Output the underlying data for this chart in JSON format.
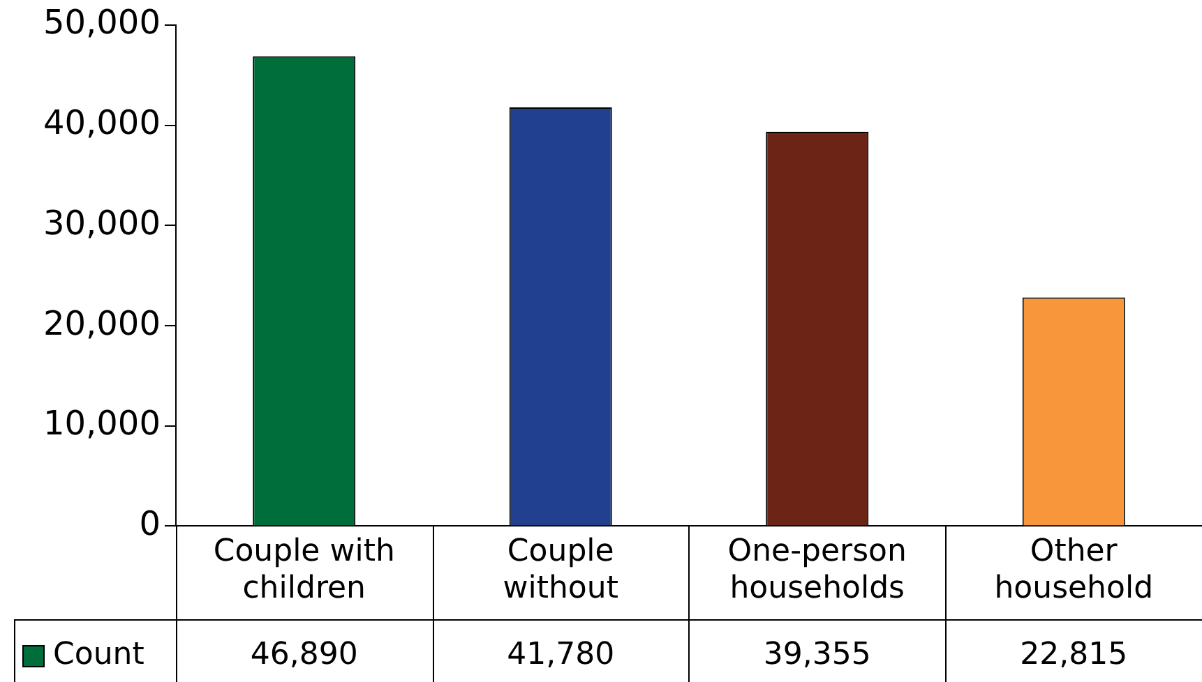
{
  "chart_data": {
    "type": "bar",
    "categories": [
      "Couple with children",
      "Couple without",
      "One-person households",
      "Other household"
    ],
    "series": [
      {
        "name": "Count",
        "color": "#006e3a",
        "colors": [
          "#006e3a",
          "#21408f",
          "#6b2415",
          "#f7963b"
        ],
        "values": [
          46890,
          41780,
          39355,
          22815
        ],
        "value_labels": [
          "46,890",
          "41,780",
          "39,355",
          "22,815"
        ]
      }
    ],
    "ylim": [
      0,
      50000
    ],
    "yticks": [
      {
        "value": 0,
        "label": "0"
      },
      {
        "value": 10000,
        "label": "10,000"
      },
      {
        "value": 20000,
        "label": "20,000"
      },
      {
        "value": 30000,
        "label": "30,000"
      },
      {
        "value": 40000,
        "label": "40,000"
      },
      {
        "value": 50000,
        "label": "50,000"
      }
    ],
    "grid": false,
    "legend": "bottom left"
  }
}
